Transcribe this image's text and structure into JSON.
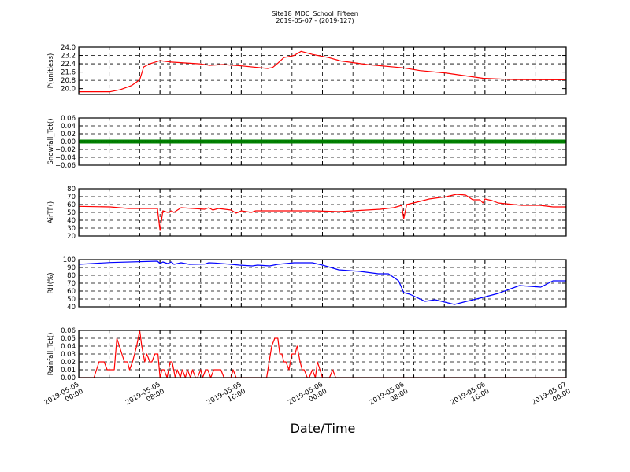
{
  "chart_data": {
    "type": "line",
    "title": "Site18_MDC_School_Fifteen",
    "subtitle": "2019-05-07 - (2019-127)",
    "xlabel": "Date/Time",
    "xlim": [
      "2019-05-05 00:00",
      "2019-05-07 00:00"
    ],
    "xticks": [
      {
        "t": "2019-05-05 00:00",
        "label": [
          "2019-05-05",
          "00:00"
        ]
      },
      {
        "t": "2019-05-05 08:00",
        "label": [
          "2019-05-05",
          "08:00"
        ]
      },
      {
        "t": "2019-05-05 16:00",
        "label": [
          "2019-05-05",
          "16:00"
        ]
      },
      {
        "t": "2019-05-06 00:00",
        "label": [
          "2019-05-06",
          "00:00"
        ]
      },
      {
        "t": "2019-05-06 08:00",
        "label": [
          "2019-05-06",
          "08:00"
        ]
      },
      {
        "t": "2019-05-06 16:00",
        "label": [
          "2019-05-06",
          "16:00"
        ]
      },
      {
        "t": "2019-05-07 00:00",
        "label": [
          "2019-05-07",
          "00:00"
        ]
      }
    ],
    "grid": true,
    "panels": [
      {
        "ylabel": "P(unitless)",
        "ylim": [
          19.44,
          24.0
        ],
        "color": "#ff0000",
        "yticks": [
          "20.0",
          "20.8",
          "21.6",
          "22.4",
          "23.2",
          "24.0"
        ],
        "points": [
          [
            "2019-05-05 00:00",
            19.7
          ],
          [
            "2019-05-05 02:00",
            19.7
          ],
          [
            "2019-05-05 03:06",
            19.7
          ],
          [
            "2019-05-05 04:06",
            19.9
          ],
          [
            "2019-05-05 05:12",
            20.3
          ],
          [
            "2019-05-05 06:00",
            20.85
          ],
          [
            "2019-05-05 06:24",
            22.1
          ],
          [
            "2019-05-05 07:00",
            22.4
          ],
          [
            "2019-05-05 08:00",
            22.7
          ],
          [
            "2019-05-05 09:06",
            22.56
          ],
          [
            "2019-05-05 11:54",
            22.4
          ],
          [
            "2019-05-05 12:54",
            22.25
          ],
          [
            "2019-05-05 14:12",
            22.33
          ],
          [
            "2019-05-05 16:00",
            22.2
          ],
          [
            "2019-05-05 18:36",
            21.95
          ],
          [
            "2019-05-05 19:06",
            22.05
          ],
          [
            "2019-05-05 19:36",
            22.46
          ],
          [
            "2019-05-05 20:12",
            23.0
          ],
          [
            "2019-05-05 21:12",
            23.2
          ],
          [
            "2019-05-05 21:54",
            23.6
          ],
          [
            "2019-05-05 23:00",
            23.3
          ],
          [
            "2019-05-06 00:36",
            23.0
          ],
          [
            "2019-05-06 01:48",
            22.67
          ],
          [
            "2019-05-06 04:24",
            22.33
          ],
          [
            "2019-05-06 08:00",
            22.0
          ],
          [
            "2019-05-06 09:36",
            21.74
          ],
          [
            "2019-05-06 12:12",
            21.5
          ],
          [
            "2019-05-06 15:48",
            21.0
          ],
          [
            "2019-05-06 18:54",
            20.87
          ],
          [
            "2019-05-07 00:00",
            20.85
          ]
        ]
      },
      {
        "ylabel": "Snowfall_Tot()",
        "ylim": [
          -0.06,
          0.06
        ],
        "color": "#008000",
        "marker": "o",
        "yticks": [
          "−0.06",
          "−0.04",
          "−0.02",
          "0.00",
          "0.02",
          "0.04",
          "0.06"
        ],
        "points": [
          [
            "2019-05-05 00:00",
            0
          ],
          [
            "2019-05-07 00:00",
            0
          ]
        ]
      },
      {
        "ylabel": "AirTF()",
        "ylim": [
          20,
          80
        ],
        "color": "#ff0000",
        "yticks": [
          "20",
          "30",
          "40",
          "50",
          "60",
          "70",
          "80"
        ],
        "points": [
          [
            "2019-05-05 00:00",
            57.7
          ],
          [
            "2019-05-05 03:06",
            57
          ],
          [
            "2019-05-05 04:54",
            55
          ],
          [
            "2019-05-05 07:45",
            55
          ],
          [
            "2019-05-05 08:00",
            27
          ],
          [
            "2019-05-05 08:17",
            52
          ],
          [
            "2019-05-05 08:45",
            50
          ],
          [
            "2019-05-05 09:08",
            52
          ],
          [
            "2019-05-05 09:22",
            50
          ],
          [
            "2019-05-05 10:05",
            56
          ],
          [
            "2019-05-05 12:24",
            54
          ],
          [
            "2019-05-05 12:48",
            56
          ],
          [
            "2019-05-05 13:12",
            53
          ],
          [
            "2019-05-05 13:45",
            55
          ],
          [
            "2019-05-05 15:00",
            53
          ],
          [
            "2019-05-05 15:30",
            49
          ],
          [
            "2019-05-05 16:00",
            52
          ],
          [
            "2019-05-05 17:00",
            50
          ],
          [
            "2019-05-05 17:26",
            52
          ],
          [
            "2019-05-05 21:12",
            52
          ],
          [
            "2019-05-05 23:15",
            52
          ],
          [
            "2019-05-06 01:36",
            51
          ],
          [
            "2019-05-06 05:42",
            54
          ],
          [
            "2019-05-06 07:00",
            56
          ],
          [
            "2019-05-06 07:48",
            59
          ],
          [
            "2019-05-06 08:00",
            42
          ],
          [
            "2019-05-06 08:18",
            60
          ],
          [
            "2019-05-06 09:36",
            64
          ],
          [
            "2019-05-06 10:30",
            67
          ],
          [
            "2019-05-06 12:12",
            70
          ],
          [
            "2019-05-06 13:12",
            73
          ],
          [
            "2019-05-06 14:06",
            72
          ],
          [
            "2019-05-06 14:48",
            66
          ],
          [
            "2019-05-06 15:30",
            66
          ],
          [
            "2019-05-06 15:48",
            62
          ],
          [
            "2019-05-06 16:00",
            67
          ],
          [
            "2019-05-06 16:42",
            65
          ],
          [
            "2019-05-06 17:18",
            62
          ],
          [
            "2019-05-06 19:36",
            59
          ],
          [
            "2019-05-06 21:24",
            59
          ],
          [
            "2019-05-06 22:42",
            57
          ],
          [
            "2019-05-07 00:00",
            57
          ]
        ]
      },
      {
        "ylabel": "RH(%)",
        "ylim": [
          40,
          100
        ],
        "color": "#0000ff",
        "yticks": [
          "40",
          "50",
          "60",
          "70",
          "80",
          "90",
          "100"
        ],
        "points": [
          [
            "2019-05-05 00:00",
            94
          ],
          [
            "2019-05-05 03:06",
            96.3
          ],
          [
            "2019-05-05 07:45",
            98
          ],
          [
            "2019-05-05 08:00",
            95
          ],
          [
            "2019-05-05 08:17",
            97
          ],
          [
            "2019-05-05 08:45",
            95
          ],
          [
            "2019-05-05 09:08",
            97
          ],
          [
            "2019-05-05 09:22",
            94
          ],
          [
            "2019-05-05 10:05",
            96
          ],
          [
            "2019-05-05 10:54",
            94
          ],
          [
            "2019-05-05 12:24",
            94.3
          ],
          [
            "2019-05-05 12:48",
            96
          ],
          [
            "2019-05-05 13:24",
            95.7
          ],
          [
            "2019-05-05 15:00",
            94
          ],
          [
            "2019-05-05 15:48",
            93
          ],
          [
            "2019-05-05 17:06",
            92
          ],
          [
            "2019-05-05 17:36",
            93
          ],
          [
            "2019-05-05 18:48",
            92
          ],
          [
            "2019-05-05 19:36",
            94
          ],
          [
            "2019-05-05 21:12",
            96
          ],
          [
            "2019-05-05 23:00",
            96
          ],
          [
            "2019-05-06 00:00",
            93
          ],
          [
            "2019-05-06 01:36",
            87
          ],
          [
            "2019-05-06 03:42",
            85
          ],
          [
            "2019-05-06 05:30",
            82
          ],
          [
            "2019-05-06 06:30",
            82
          ],
          [
            "2019-05-06 07:30",
            73
          ],
          [
            "2019-05-06 08:00",
            58
          ],
          [
            "2019-05-06 08:36",
            56
          ],
          [
            "2019-05-06 10:06",
            47
          ],
          [
            "2019-05-06 11:06",
            49
          ],
          [
            "2019-05-06 13:00",
            43
          ],
          [
            "2019-05-06 14:12",
            47
          ],
          [
            "2019-05-06 15:48",
            52
          ],
          [
            "2019-05-06 17:18",
            57
          ],
          [
            "2019-05-06 19:24",
            67
          ],
          [
            "2019-05-06 21:30",
            65
          ],
          [
            "2019-05-06 22:42",
            73
          ],
          [
            "2019-05-07 00:00",
            73
          ]
        ]
      },
      {
        "ylabel": "Rainfall_Tot()",
        "ylim": [
          0,
          0.06
        ],
        "color": "#ff0000",
        "yticks": [
          "0.00",
          "0.01",
          "0.02",
          "0.03",
          "0.04",
          "0.05",
          "0.06"
        ],
        "points": [
          [
            "2019-05-05 00:00",
            0
          ],
          [
            "2019-05-05 01:30",
            0
          ],
          [
            "2019-05-05 02:00",
            0.02
          ],
          [
            "2019-05-05 02:30",
            0.02
          ],
          [
            "2019-05-05 02:48",
            0.01
          ],
          [
            "2019-05-05 03:30",
            0.01
          ],
          [
            "2019-05-05 03:45",
            0.05
          ],
          [
            "2019-05-05 04:30",
            0.02
          ],
          [
            "2019-05-05 04:48",
            0.02
          ],
          [
            "2019-05-05 05:00",
            0.01
          ],
          [
            "2019-05-05 05:18",
            0.02
          ],
          [
            "2019-05-05 05:42",
            0.04
          ],
          [
            "2019-05-05 06:00",
            0.06
          ],
          [
            "2019-05-05 06:12",
            0.04
          ],
          [
            "2019-05-05 06:30",
            0.02
          ],
          [
            "2019-05-05 06:42",
            0.03
          ],
          [
            "2019-05-05 07:00",
            0.02
          ],
          [
            "2019-05-05 07:12",
            0.02
          ],
          [
            "2019-05-05 07:30",
            0.03
          ],
          [
            "2019-05-05 07:48",
            0.03
          ],
          [
            "2019-05-05 08:00",
            0
          ],
          [
            "2019-05-05 08:12",
            0.01
          ],
          [
            "2019-05-05 08:24",
            0.01
          ],
          [
            "2019-05-05 08:42",
            0
          ],
          [
            "2019-05-05 09:00",
            0.02
          ],
          [
            "2019-05-05 09:12",
            0.02
          ],
          [
            "2019-05-05 09:30",
            0
          ],
          [
            "2019-05-05 09:42",
            0.01
          ],
          [
            "2019-05-05 10:00",
            0
          ],
          [
            "2019-05-05 10:12",
            0.01
          ],
          [
            "2019-05-05 10:30",
            0
          ],
          [
            "2019-05-05 10:42",
            0.01
          ],
          [
            "2019-05-05 11:00",
            0
          ],
          [
            "2019-05-05 11:12",
            0.01
          ],
          [
            "2019-05-05 11:30",
            0
          ],
          [
            "2019-05-05 11:42",
            0
          ],
          [
            "2019-05-05 12:00",
            0.01
          ],
          [
            "2019-05-05 12:12",
            0
          ],
          [
            "2019-05-05 12:30",
            0.01
          ],
          [
            "2019-05-05 12:42",
            0.01
          ],
          [
            "2019-05-05 13:00",
            0
          ],
          [
            "2019-05-05 13:18",
            0.01
          ],
          [
            "2019-05-05 14:00",
            0.01
          ],
          [
            "2019-05-05 14:18",
            0
          ],
          [
            "2019-05-05 15:00",
            0
          ],
          [
            "2019-05-05 15:12",
            0.01
          ],
          [
            "2019-05-05 15:30",
            0
          ],
          [
            "2019-05-05 18:30",
            0
          ],
          [
            "2019-05-05 19:00",
            0.04
          ],
          [
            "2019-05-05 19:18",
            0.05
          ],
          [
            "2019-05-05 19:36",
            0.05
          ],
          [
            "2019-05-05 19:48",
            0.03
          ],
          [
            "2019-05-05 20:00",
            0.03
          ],
          [
            "2019-05-05 20:12",
            0.02
          ],
          [
            "2019-05-05 20:24",
            0.02
          ],
          [
            "2019-05-05 20:42",
            0.01
          ],
          [
            "2019-05-05 21:00",
            0.03
          ],
          [
            "2019-05-05 21:18",
            0.03
          ],
          [
            "2019-05-05 21:30",
            0.04
          ],
          [
            "2019-05-05 21:48",
            0.02
          ],
          [
            "2019-05-05 22:00",
            0.01
          ],
          [
            "2019-05-05 22:12",
            0.01
          ],
          [
            "2019-05-05 22:30",
            0
          ],
          [
            "2019-05-05 22:42",
            0
          ],
          [
            "2019-05-05 23:00",
            0.01
          ],
          [
            "2019-05-05 23:18",
            0
          ],
          [
            "2019-05-05 23:30",
            0.02
          ],
          [
            "2019-05-06 00:00",
            0
          ],
          [
            "2019-05-06 00:42",
            0
          ],
          [
            "2019-05-06 01:00",
            0.01
          ],
          [
            "2019-05-06 01:18",
            0
          ],
          [
            "2019-05-07 00:00",
            0
          ]
        ]
      }
    ]
  }
}
